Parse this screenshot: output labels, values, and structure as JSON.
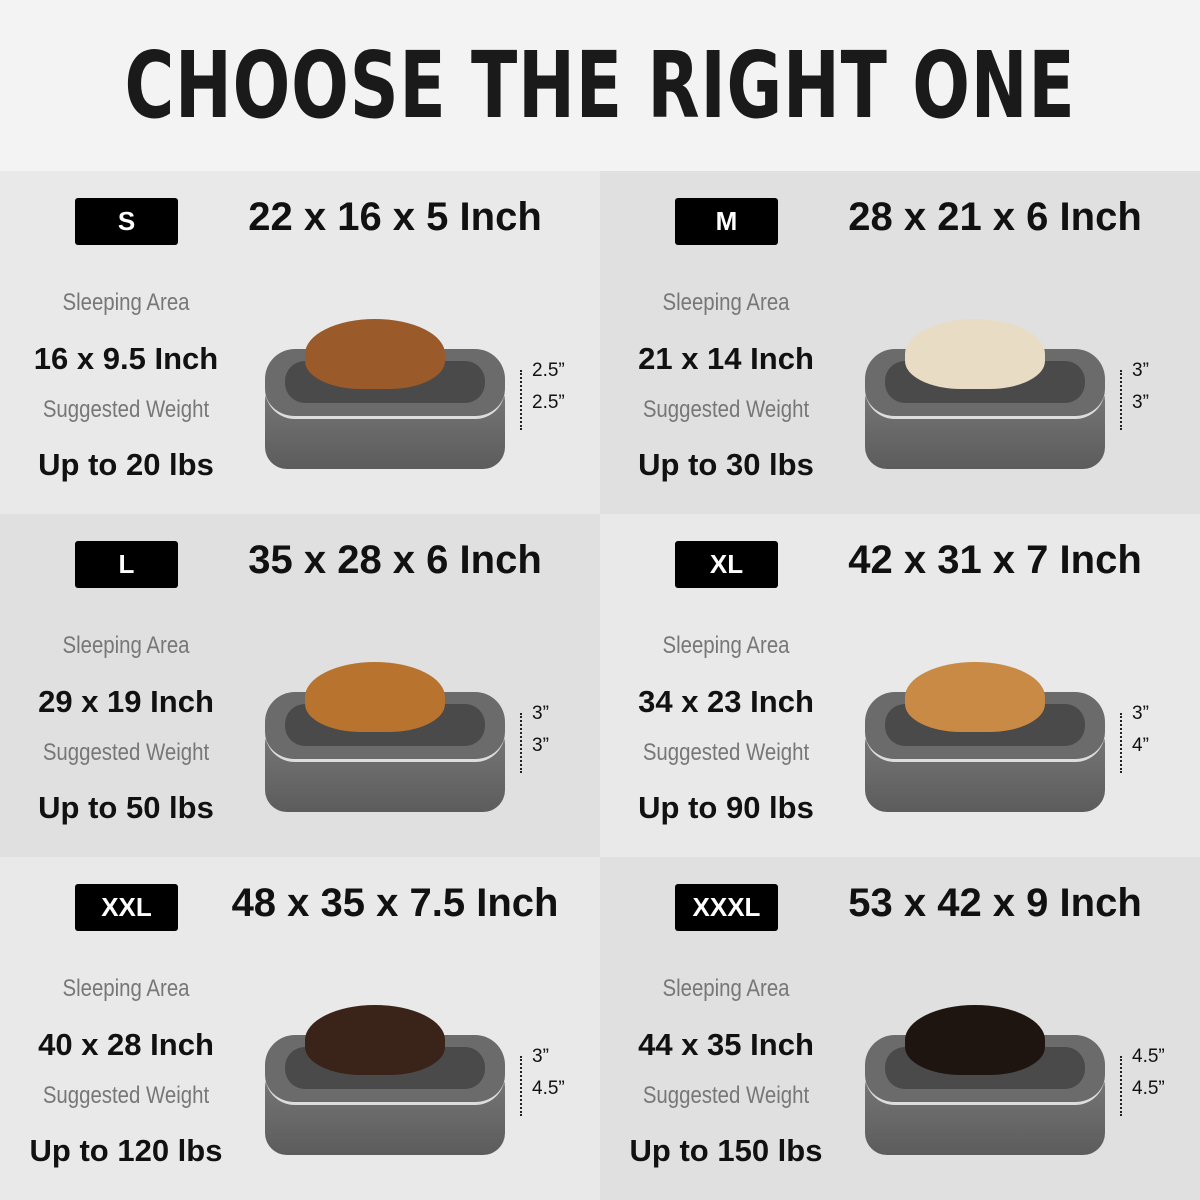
{
  "title": "CHOOSE THE RIGHT ONE",
  "labels": {
    "sleeping": "Sleeping Area",
    "weight": "Suggested Weight"
  },
  "sizes": [
    {
      "size": "S",
      "dims": "22 x 16 x 5 Inch",
      "sleeping": "16 x 9.5 Inch",
      "weight": "Up to 20 lbs",
      "h1": "2.5”",
      "h2": "2.5”",
      "dog_color": "#9a5a2a"
    },
    {
      "size": "M",
      "dims": "28 x 21 x 6 Inch",
      "sleeping": "21 x 14 Inch",
      "weight": "Up to 30 lbs",
      "h1": "3”",
      "h2": "3”",
      "dog_color": "#e8dcc4"
    },
    {
      "size": "L",
      "dims": "35 x 28 x 6 Inch",
      "sleeping": "29 x 19 Inch",
      "weight": "Up to 50 lbs",
      "h1": "3”",
      "h2": "3”",
      "dog_color": "#b8732e"
    },
    {
      "size": "XL",
      "dims": "42 x 31 x 7 Inch",
      "sleeping": "34 x 23 Inch",
      "weight": "Up to 90 lbs",
      "h1": "3”",
      "h2": "4”",
      "dog_color": "#c98a45"
    },
    {
      "size": "XXL",
      "dims": "48 x 35 x 7.5 Inch",
      "sleeping": "40 x 28 Inch",
      "weight": "Up to 120 lbs",
      "h1": "3”",
      "h2": "4.5”",
      "dog_color": "#3a2318"
    },
    {
      "size": "XXXL",
      "dims": "53 x 42 x 9 Inch",
      "sleeping": "44 x 35 Inch",
      "weight": "Up to 150 lbs",
      "h1": "4.5”",
      "h2": "4.5”",
      "dog_color": "#1e1410"
    }
  ]
}
